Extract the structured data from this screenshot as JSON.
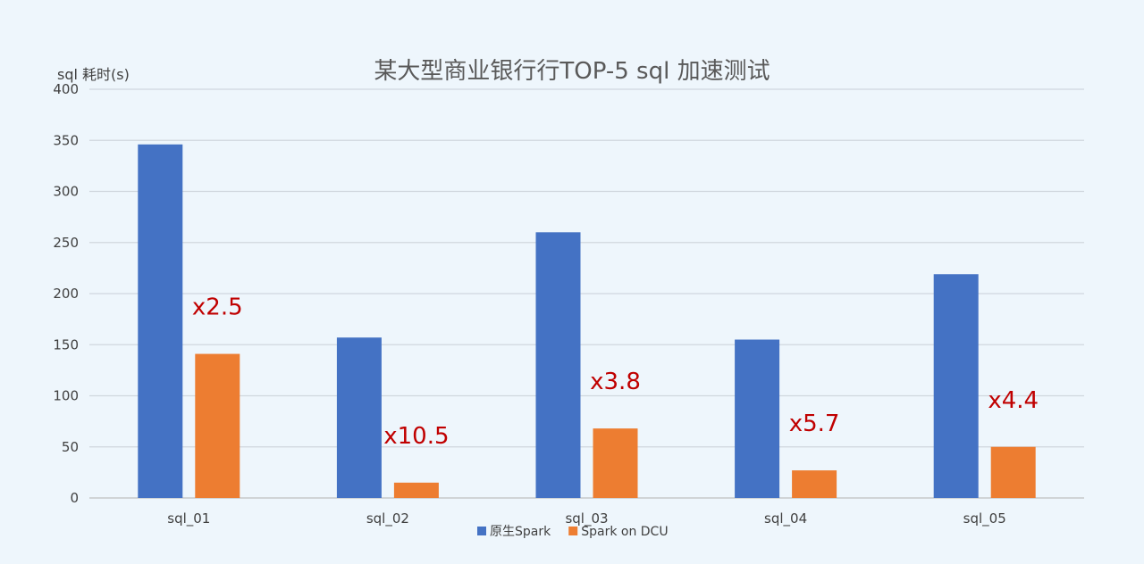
{
  "chart_data": {
    "type": "bar",
    "title": "某大型商业银行行TOP-5 sql 加速测试",
    "ylabel": "sql 耗时(s)",
    "xlabel": "",
    "ylim": [
      0,
      400
    ],
    "yticks": [
      0,
      50,
      100,
      150,
      200,
      250,
      300,
      350,
      400
    ],
    "grid": true,
    "legend_position": "bottom",
    "categories": [
      "sql_01",
      "sql_02",
      "sql_03",
      "sql_04",
      "sql_05"
    ],
    "series": [
      {
        "name": "原生Spark",
        "color": "#4472c4",
        "values": [
          346,
          157,
          260,
          155,
          219
        ]
      },
      {
        "name": "Spark on DCU",
        "color": "#ed7d31",
        "values": [
          141,
          15,
          68,
          27,
          50
        ]
      }
    ],
    "annotations": [
      {
        "category": "sql_01",
        "text": "x2.5"
      },
      {
        "category": "sql_02",
        "text": "x10.5"
      },
      {
        "category": "sql_03",
        "text": "x3.8"
      },
      {
        "category": "sql_04",
        "text": "x5.7"
      },
      {
        "category": "sql_05",
        "text": "x4.4"
      }
    ]
  }
}
